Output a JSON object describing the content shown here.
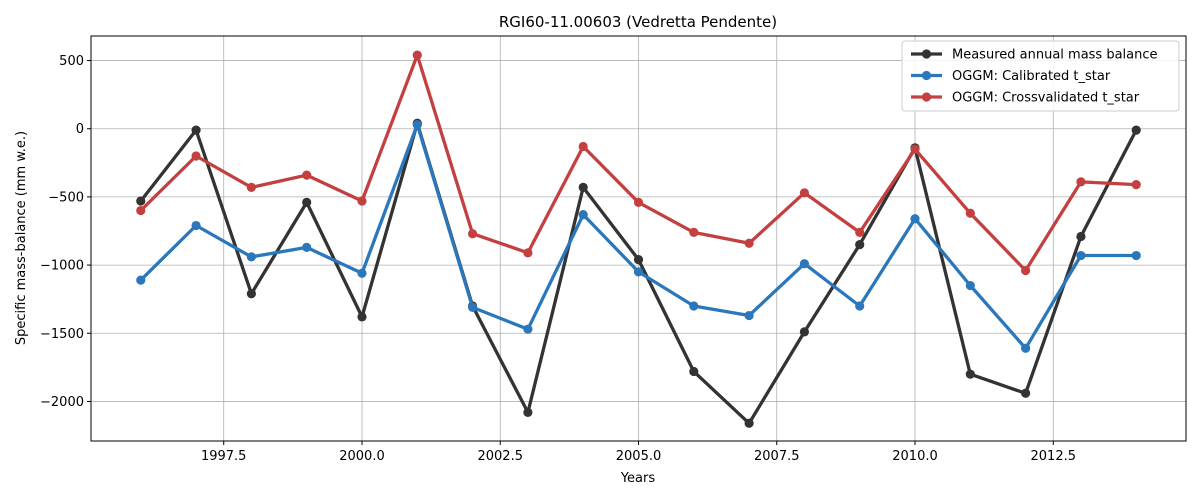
{
  "chart_data": {
    "type": "line",
    "title": "RGI60-11.00603 (Vedretta Pendente)",
    "xlabel": "Years",
    "ylabel": "Specific mass-balance (mm w.e.)",
    "xlim": [
      1995.1,
      2014.9
    ],
    "ylim": [
      -2290,
      680
    ],
    "xticks": [
      1997.5,
      2000.0,
      2002.5,
      2005.0,
      2007.5,
      2010.0,
      2012.5
    ],
    "xtick_labels": [
      "1997.5",
      "2000.0",
      "2002.5",
      "2005.0",
      "2007.5",
      "2010.0",
      "2012.5"
    ],
    "yticks": [
      500,
      0,
      -500,
      -1000,
      -1500,
      -2000
    ],
    "ytick_labels": [
      "500",
      "0",
      "−500",
      "−1000",
      "−1500",
      "−2000"
    ],
    "grid": true,
    "legend_position": "top-right",
    "x": [
      1996,
      1997,
      1998,
      1999,
      2000,
      2001,
      2002,
      2003,
      2004,
      2005,
      2006,
      2007,
      2008,
      2009,
      2010,
      2011,
      2012,
      2013,
      2014
    ],
    "series": [
      {
        "name": "Measured annual mass balance",
        "color": "#333333",
        "values": [
          -530,
          -10,
          -1210,
          -540,
          -1380,
          40,
          -1300,
          -2080,
          -430,
          -960,
          -1780,
          -2160,
          -1490,
          -850,
          -140,
          -1800,
          -1940,
          -790,
          -10
        ]
      },
      {
        "name": "OGGM: Calibrated t_star",
        "color": "#2b77bb",
        "values": [
          -1110,
          -710,
          -940,
          -870,
          -1060,
          30,
          -1310,
          -1470,
          -630,
          -1050,
          -1300,
          -1370,
          -990,
          -1300,
          -660,
          -1150,
          -1610,
          -930,
          -930
        ]
      },
      {
        "name": "OGGM: Crossvalidated t_star",
        "color": "#c44040",
        "values": [
          -600,
          -200,
          -430,
          -340,
          -530,
          540,
          -770,
          -910,
          -130,
          -540,
          -760,
          -840,
          -470,
          -760,
          -150,
          -620,
          -1040,
          -390,
          -410
        ]
      }
    ]
  }
}
